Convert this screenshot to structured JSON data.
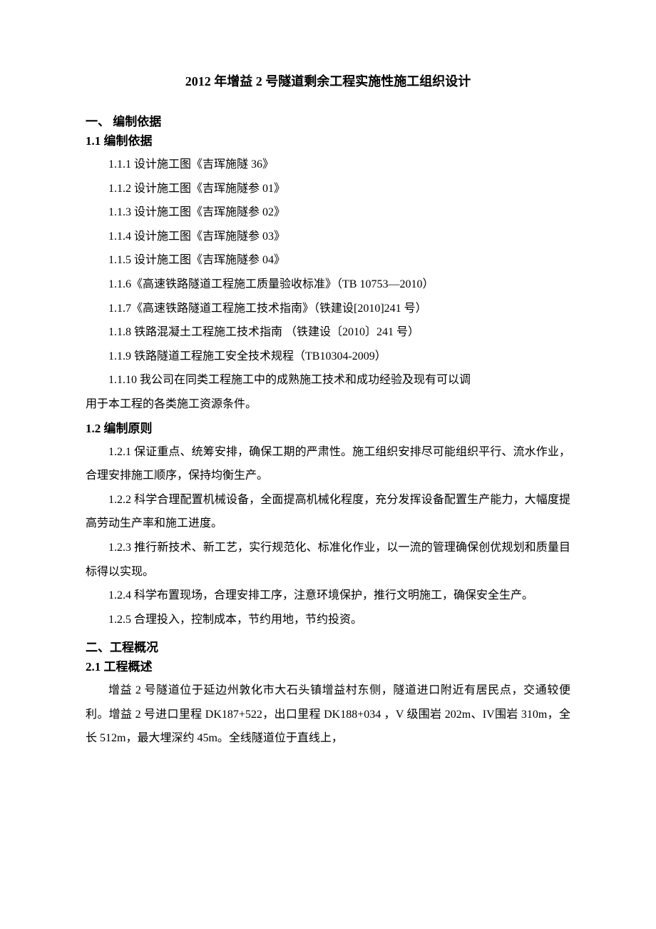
{
  "title": "2012 年增益 2 号隧道剩余工程实施性施工组织设计",
  "section1": {
    "heading": "一、  编制依据",
    "sub1_1": {
      "heading": "1.1 编制依据",
      "items": [
        "1.1.1 设计施工图《吉珲施隧 36》",
        "1.1.2 设计施工图《吉珲施隧参 01》",
        "1.1.3 设计施工图《吉珲施隧参 02》",
        "1.1.4 设计施工图《吉珲施隧参 03》",
        "1.1.5 设计施工图《吉珲施隧参 04》",
        "1.1.6《高速铁路隧道工程施工质量验收标准》（TB 10753—2010）",
        "1.1.7《高速铁路隧道工程施工技术指南》（铁建设[2010]241 号）",
        "1.1.8 铁路混凝土工程施工技术指南 （铁建设〔2010〕241 号）",
        "1.1.9 铁路隧道工程施工安全技术规程（TB10304-2009）"
      ],
      "item_1_1_10_a": "1.1.10 我公司在同类工程施工中的成熟施工技术和成功经验及现有可以调",
      "item_1_1_10_b": "用于本工程的各类施工资源条件。"
    },
    "sub1_2": {
      "heading": "1.2 编制原则",
      "items": [
        "1.2.1 保证重点、统筹安排，确保工期的严肃性。施工组织安排尽可能组织平行、流水作业，合理安排施工顺序，保持均衡生产。",
        "1.2.2 科学合理配置机械设备，全面提高机械化程度，充分发挥设备配置生产能力，大幅度提高劳动生产率和施工进度。",
        "1.2.3 推行新技术、新工艺，实行规范化、标准化作业，以一流的管理确保创优规划和质量目标得以实现。",
        "1.2.4 科学布置现场，合理安排工序，注意环境保护，推行文明施工，确保安全生产。",
        "1.2.5 合理投入，控制成本，节约用地，节约投资。"
      ]
    }
  },
  "section2": {
    "heading": "二、工程概况",
    "sub2_1": {
      "heading": "2.1 工程概述",
      "paragraph": "增益 2 号隧道位于延边州敦化市大石头镇增益村东侧，隧道进口附近有居民点，交通较便利。增益 2 号进口里程 DK187+522，出口里程 DK188+034 ，V 级围岩 202m、IV围岩 310m，全长 512m，最大埋深约 45m。全线隧道位于直线上，"
    }
  }
}
